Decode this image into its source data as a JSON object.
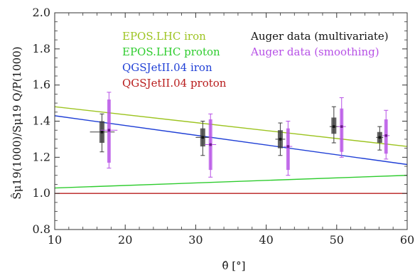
{
  "chart_data": {
    "type": "line",
    "xlabel": "θ̂ [°]",
    "ylabel": "Ŝμ19(1000)/Sμ19 Q/P(1000)",
    "xlim": [
      10,
      60
    ],
    "ylim": [
      0.8,
      2.0
    ],
    "x_ticks": [
      "10",
      "20",
      "30",
      "40",
      "50",
      "60"
    ],
    "y_ticks": [
      "0.8",
      "1.0",
      "1.2",
      "1.4",
      "1.6",
      "1.8",
      "2.0"
    ],
    "grid": false,
    "legend_position": "top",
    "model_lines": [
      {
        "name": "EPOS.LHC iron",
        "color": "#9dc421",
        "x": [
          10,
          60
        ],
        "y": [
          1.48,
          1.26
        ]
      },
      {
        "name": "EPOS.LHC proton",
        "color": "#2ecc2e",
        "x": [
          10,
          60
        ],
        "y": [
          1.03,
          1.1
        ]
      },
      {
        "name": "QGSJetII.04 iron",
        "color": "#1f3fd6",
        "x": [
          10,
          60
        ],
        "y": [
          1.43,
          1.16
        ]
      },
      {
        "name": "QGSJetII.04 proton",
        "color": "#b81c1c",
        "x": [
          10,
          60
        ],
        "y": [
          1.0,
          1.0
        ]
      }
    ],
    "data_series": [
      {
        "name": "Auger data (multivariate)",
        "color": "#3b3b3b",
        "points": [
          {
            "x": 16.7,
            "y": 1.34,
            "y_box": [
              1.28,
              1.4
            ],
            "y_err": [
              1.23,
              1.44
            ],
            "x_err": [
              15.0,
              18.5
            ]
          },
          {
            "x": 31.0,
            "y": 1.31,
            "y_box": [
              1.26,
              1.36
            ],
            "y_err": [
              1.21,
              1.4
            ],
            "x_err": [
              30.0,
              32.0
            ]
          },
          {
            "x": 42.0,
            "y": 1.3,
            "y_box": [
              1.25,
              1.35
            ],
            "y_err": [
              1.21,
              1.39
            ],
            "x_err": [
              41.3,
              42.7
            ]
          },
          {
            "x": 49.6,
            "y": 1.37,
            "y_box": [
              1.33,
              1.42
            ],
            "y_err": [
              1.28,
              1.48
            ],
            "x_err": [
              49.0,
              50.3
            ]
          },
          {
            "x": 56.1,
            "y": 1.31,
            "y_box": [
              1.28,
              1.34
            ],
            "y_err": [
              1.24,
              1.37
            ],
            "x_err": [
              55.6,
              56.6
            ]
          }
        ]
      },
      {
        "name": "Auger data (smoothing)",
        "color": "#b64fe6",
        "points": [
          {
            "x": 17.7,
            "y": 1.35,
            "y_box": [
              1.17,
              1.52
            ],
            "y_err": [
              1.14,
              1.56
            ],
            "x_err": [
              16.5,
              18.9
            ]
          },
          {
            "x": 32.1,
            "y": 1.27,
            "y_box": [
              1.13,
              1.41
            ],
            "y_err": [
              1.09,
              1.44
            ],
            "x_err": [
              31.3,
              32.9
            ]
          },
          {
            "x": 43.1,
            "y": 1.26,
            "y_box": [
              1.13,
              1.36
            ],
            "y_err": [
              1.1,
              1.4
            ],
            "x_err": [
              42.5,
              43.7
            ]
          },
          {
            "x": 50.7,
            "y": 1.37,
            "y_box": [
              1.23,
              1.47
            ],
            "y_err": [
              1.2,
              1.53
            ],
            "x_err": [
              50.1,
              51.3
            ]
          },
          {
            "x": 57.0,
            "y": 1.32,
            "y_box": [
              1.22,
              1.41
            ],
            "y_err": [
              1.19,
              1.46
            ],
            "x_err": [
              56.5,
              57.5
            ]
          }
        ]
      }
    ]
  }
}
